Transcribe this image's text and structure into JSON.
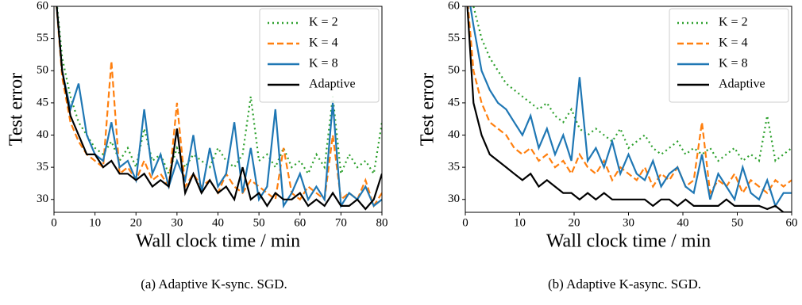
{
  "chart_data": [
    {
      "type": "line",
      "xlabel": "Wall clock time / min",
      "ylabel": "Test error",
      "caption": "(a) Adaptive K-sync. SGD.",
      "xlim": [
        0,
        80
      ],
      "ylim": [
        28,
        60
      ],
      "xticks": [
        0,
        10,
        20,
        30,
        40,
        50,
        60,
        70,
        80
      ],
      "yticks": [
        30,
        35,
        40,
        45,
        50,
        55,
        60
      ],
      "legend": "upper right",
      "x": [
        0,
        2,
        4,
        6,
        8,
        10,
        12,
        14,
        16,
        18,
        20,
        22,
        24,
        26,
        28,
        30,
        32,
        34,
        36,
        38,
        40,
        42,
        44,
        46,
        48,
        50,
        52,
        54,
        56,
        58,
        60,
        62,
        64,
        66,
        68,
        70,
        72,
        74,
        76,
        78,
        80
      ],
      "series": [
        {
          "name": "K = 2",
          "color": "#2ca02c",
          "style": "dotted",
          "values": [
            65,
            52,
            46,
            42,
            40,
            38,
            37,
            39,
            36,
            38,
            35,
            41,
            36,
            37,
            34,
            38,
            35,
            37,
            36,
            35,
            38,
            36,
            35,
            37,
            46,
            36,
            37,
            35,
            38,
            35,
            36,
            34,
            37,
            35,
            46,
            34,
            37,
            35,
            36,
            34,
            42
          ]
        },
        {
          "name": "K = 4",
          "color": "#ff7f0e",
          "style": "dashed",
          "values": [
            65,
            49,
            42,
            39,
            37,
            36,
            35,
            51.5,
            34,
            35,
            33,
            36,
            33,
            34,
            32,
            45,
            32,
            34,
            32,
            33,
            31,
            34,
            32,
            31,
            33,
            32,
            31,
            30,
            38,
            31,
            30,
            32,
            31,
            30,
            40,
            30,
            31,
            30,
            33,
            29,
            31
          ]
        },
        {
          "name": "K = 8",
          "color": "#1f77b4",
          "style": "solid",
          "values": [
            65,
            50,
            44,
            48,
            40,
            37,
            36,
            42,
            35,
            36,
            33,
            44,
            34,
            37,
            32,
            36,
            33,
            40,
            31,
            38,
            32,
            34,
            42,
            31,
            38,
            30,
            32,
            44,
            29,
            31,
            34,
            30,
            32,
            30,
            45,
            29,
            31,
            30,
            32,
            29,
            30
          ]
        },
        {
          "name": "Adaptive",
          "color": "#000000",
          "style": "solid",
          "values": [
            65,
            50,
            43,
            40,
            37,
            37,
            35,
            36,
            34,
            34,
            33,
            34,
            32,
            33,
            32,
            41,
            31,
            34,
            31,
            33,
            31,
            32,
            30,
            35,
            30,
            31,
            29,
            31,
            30,
            30,
            31,
            29,
            30,
            29,
            31,
            29,
            29,
            30,
            28.5,
            30,
            34
          ]
        }
      ]
    },
    {
      "type": "line",
      "xlabel": "Wall clock time / min",
      "ylabel": "Test error",
      "caption": "(b) Adaptive K-async. SGD.",
      "xlim": [
        0,
        60
      ],
      "ylim": [
        28,
        60
      ],
      "xticks": [
        0,
        10,
        20,
        30,
        40,
        50,
        60
      ],
      "yticks": [
        30,
        35,
        40,
        45,
        50,
        55,
        60
      ],
      "legend": "upper right",
      "x": [
        0,
        1.5,
        3,
        4.5,
        6,
        7.5,
        9,
        10.5,
        12,
        13.5,
        15,
        16.5,
        18,
        19.5,
        21,
        22.5,
        24,
        25.5,
        27,
        28.5,
        30,
        31.5,
        33,
        34.5,
        36,
        37.5,
        39,
        40.5,
        42,
        43.5,
        45,
        46.5,
        48,
        49.5,
        51,
        52.5,
        54,
        55.5,
        57,
        58.5,
        60
      ],
      "series": [
        {
          "name": "K = 2",
          "color": "#2ca02c",
          "style": "dotted",
          "values": [
            65,
            60,
            55,
            52,
            50,
            48,
            47,
            46,
            45,
            44,
            45,
            43,
            42,
            44,
            41,
            40,
            41,
            40,
            39,
            41,
            38,
            39,
            40,
            38,
            37,
            38,
            39,
            37,
            38,
            37,
            38,
            36,
            37,
            38,
            36,
            37,
            36,
            43,
            36,
            37,
            38
          ]
        },
        {
          "name": "K = 4",
          "color": "#ff7f0e",
          "style": "dashed",
          "values": [
            65,
            50,
            45,
            42,
            41,
            40,
            38,
            37,
            38,
            36,
            37,
            35,
            36,
            34,
            37,
            35,
            34,
            36,
            33,
            35,
            34,
            33,
            35,
            32,
            34,
            33,
            35,
            32,
            33,
            42,
            31,
            33,
            32,
            34,
            31,
            33,
            32,
            31,
            33,
            32,
            33
          ]
        },
        {
          "name": "K = 8",
          "color": "#1f77b4",
          "style": "solid",
          "values": [
            65,
            57,
            50,
            47,
            45,
            44,
            42,
            40,
            43,
            38,
            41,
            37,
            40,
            36,
            49,
            36,
            38,
            35,
            39,
            34,
            37,
            34,
            33,
            36,
            32,
            34,
            35,
            32,
            31,
            37,
            30,
            34,
            32,
            30,
            35,
            31,
            30,
            33,
            29,
            31,
            31
          ]
        },
        {
          "name": "Adaptive",
          "color": "#000000",
          "style": "solid",
          "values": [
            65,
            45,
            40,
            37,
            36,
            35,
            34,
            33,
            34,
            32,
            33,
            32,
            31,
            31,
            30,
            31,
            30,
            31,
            30,
            30,
            30,
            30,
            30,
            29,
            30,
            30,
            29,
            30,
            29,
            29,
            29,
            29,
            30,
            29,
            29,
            29,
            29,
            28.5,
            29,
            28,
            28
          ]
        }
      ]
    }
  ]
}
